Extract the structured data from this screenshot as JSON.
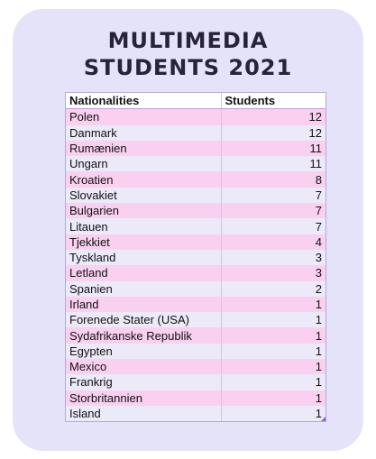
{
  "title_line1": "MULTIMEDIA",
  "title_line2": "STUDENTS 2021",
  "colors": {
    "card": "#e4e3fa",
    "row_pink": "#f9d0f0",
    "row_light": "#ece9f9",
    "title": "#27233a"
  },
  "chart_data": {
    "type": "table",
    "title": "MULTIMEDIA STUDENTS 2021",
    "columns": [
      "Nationalities",
      "Students"
    ],
    "rows": [
      [
        "Polen",
        12
      ],
      [
        "Danmark",
        12
      ],
      [
        "Rumænien",
        11
      ],
      [
        "Ungarn",
        11
      ],
      [
        "Kroatien",
        8
      ],
      [
        "Slovakiet",
        7
      ],
      [
        "Bulgarien",
        7
      ],
      [
        "Litauen",
        7
      ],
      [
        "Tjekkiet",
        4
      ],
      [
        "Tyskland",
        3
      ],
      [
        "Letland",
        3
      ],
      [
        "Spanien",
        2
      ],
      [
        "Irland",
        1
      ],
      [
        "Forenede Stater (USA)",
        1
      ],
      [
        "Sydafrikanske Republik",
        1
      ],
      [
        "Egypten",
        1
      ],
      [
        "Mexico",
        1
      ],
      [
        "Frankrig",
        1
      ],
      [
        "Storbritannien",
        1
      ],
      [
        "Island",
        1
      ]
    ]
  }
}
